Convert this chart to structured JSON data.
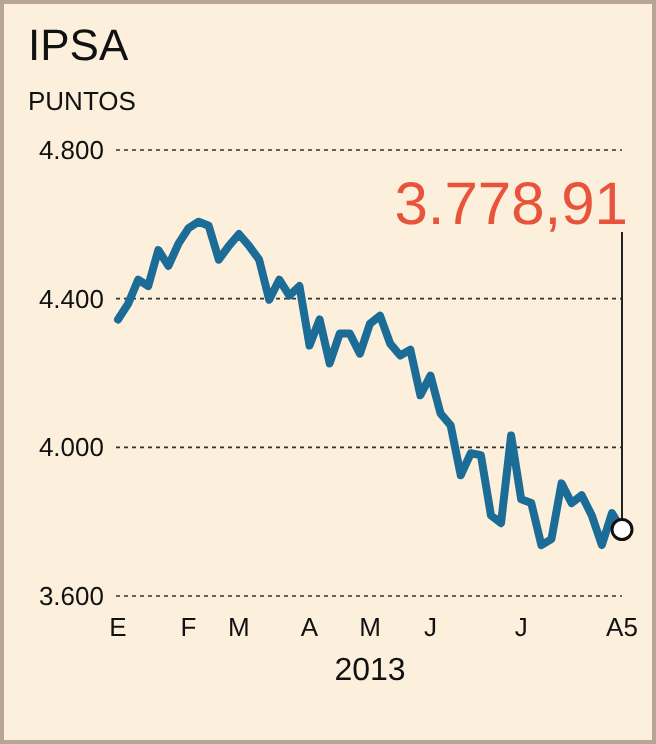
{
  "chart_data": {
    "type": "line",
    "title": "IPSA",
    "ylabel": "PUNTOS",
    "xlabel": "2013",
    "categories": [
      "E",
      null,
      null,
      null,
      null,
      null,
      null,
      "F",
      null,
      null,
      null,
      null,
      "M",
      null,
      null,
      null,
      null,
      null,
      null,
      "A",
      null,
      null,
      null,
      null,
      null,
      "M",
      null,
      null,
      null,
      null,
      null,
      "J",
      null,
      null,
      null,
      null,
      null,
      null,
      null,
      null,
      "J",
      null,
      null,
      null,
      null,
      null,
      null,
      null,
      null,
      null,
      "A5"
    ],
    "series": [
      {
        "color": "#1c6c98",
        "values": [
          4344,
          4386,
          4451,
          4434,
          4531,
          4488,
          4548,
          4590,
          4607,
          4596,
          4505,
          4542,
          4574,
          4542,
          4505,
          4397,
          4451,
          4408,
          4434,
          4274,
          4344,
          4226,
          4306,
          4306,
          4252,
          4333,
          4354,
          4279,
          4247,
          4263,
          4140,
          4193,
          4091,
          4059,
          3925,
          3984,
          3979,
          3817,
          3796,
          4032,
          3860,
          3850,
          3737,
          3753,
          3903,
          3850,
          3871,
          3817,
          3737,
          3823,
          3778.91
        ]
      }
    ],
    "ylim": [
      3600,
      4800
    ],
    "yticks": [
      {
        "value": 3600,
        "label": "3.600"
      },
      {
        "value": 4000,
        "label": "4.000"
      },
      {
        "value": 4400,
        "label": "4.400"
      },
      {
        "value": 4800,
        "label": "4.800"
      }
    ],
    "grid": "y",
    "marker": "none",
    "line_style": "solid",
    "annotations": [
      "3.778,91"
    ]
  }
}
